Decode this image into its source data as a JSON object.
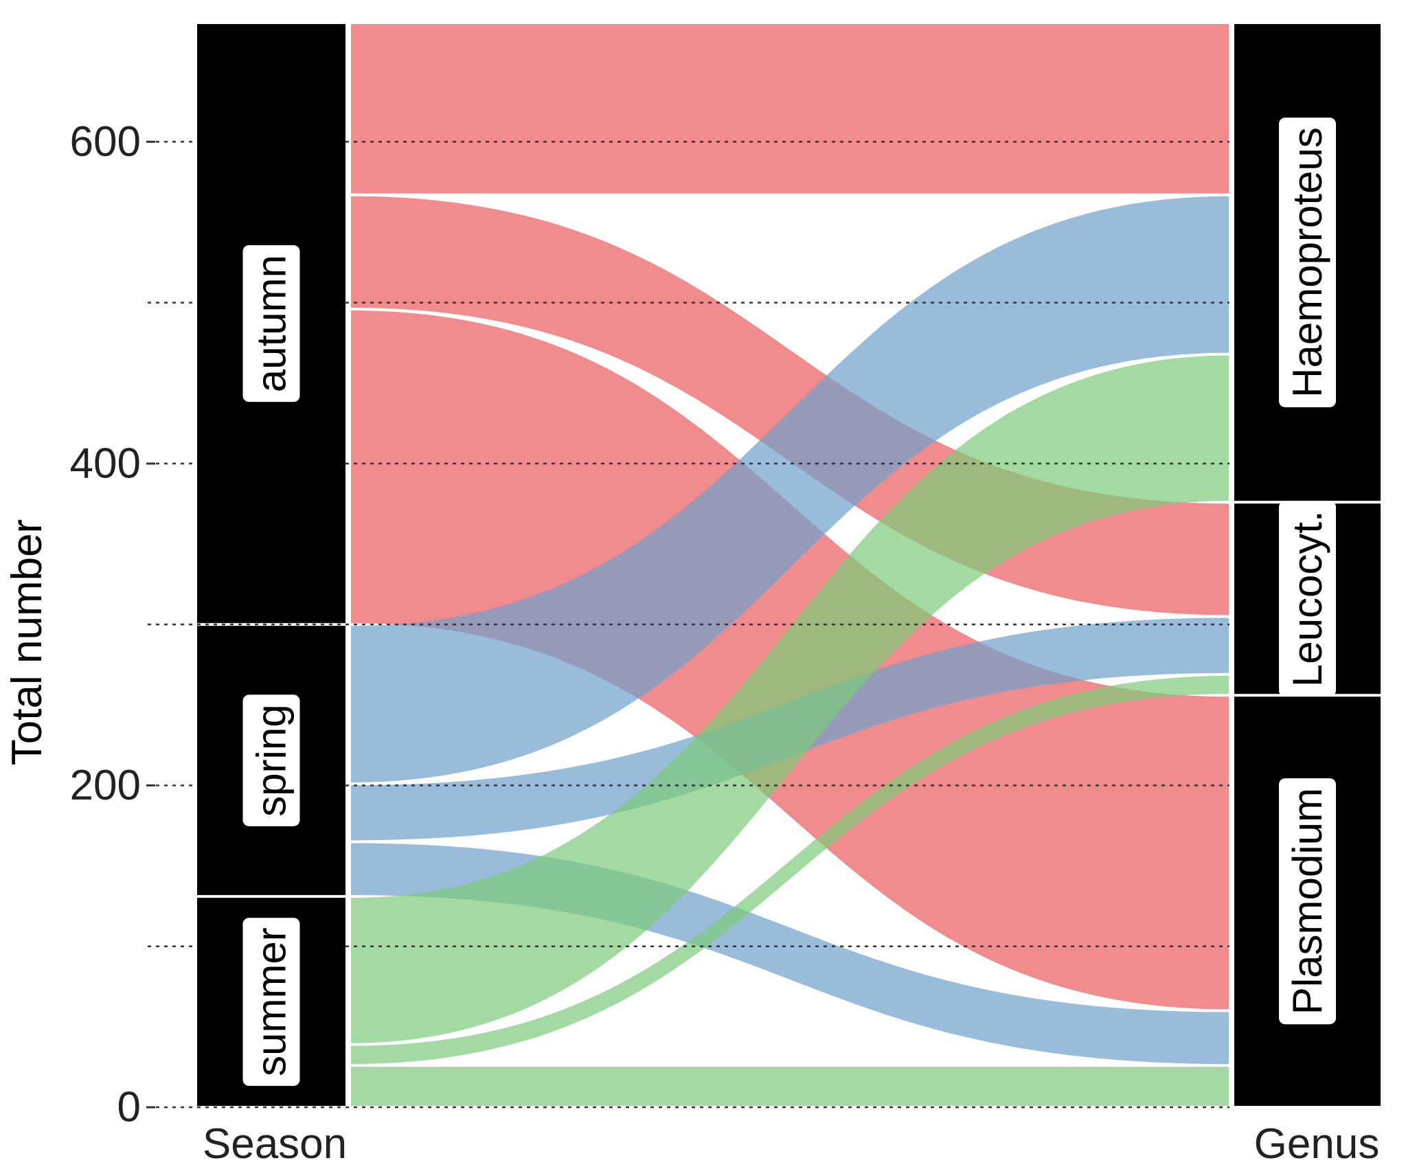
{
  "chart_data": {
    "type": "alluvial",
    "ylabel": "Total number",
    "ylim": [
      0,
      674
    ],
    "yticks": [
      0,
      200,
      400,
      600
    ],
    "gridlines": [
      0,
      100,
      200,
      300,
      400,
      500,
      600
    ],
    "axes": [
      {
        "name": "Season",
        "strata": [
          "autumn",
          "spring",
          "summer"
        ]
      },
      {
        "name": "Genus",
        "strata": [
          "Haemoproteus",
          "Leucocyt.",
          "Plasmodium"
        ]
      }
    ],
    "strata_values": {
      "Season": [
        {
          "label": "autumn",
          "value": 374
        },
        {
          "label": "spring",
          "value": 169
        },
        {
          "label": "summer",
          "value": 131
        }
      ],
      "Genus": [
        {
          "label": "Haemoproteus",
          "value": 298
        },
        {
          "label": "Leucocyt.",
          "value": 120
        },
        {
          "label": "Plasmodium",
          "value": 256
        }
      ]
    },
    "flows": [
      {
        "from": "autumn",
        "to": "Haemoproteus",
        "value": 107
      },
      {
        "from": "autumn",
        "to": "Leucocyt.",
        "value": 71
      },
      {
        "from": "autumn",
        "to": "Plasmodium",
        "value": 196
      },
      {
        "from": "spring",
        "to": "Haemoproteus",
        "value": 99
      },
      {
        "from": "spring",
        "to": "Leucocyt.",
        "value": 36
      },
      {
        "from": "spring",
        "to": "Plasmodium",
        "value": 34
      },
      {
        "from": "summer",
        "to": "Haemoproteus",
        "value": 92
      },
      {
        "from": "summer",
        "to": "Leucocyt.",
        "value": 13
      },
      {
        "from": "summer",
        "to": "Plasmodium",
        "value": 26
      }
    ],
    "colors": {
      "autumn": "#ea5b5e",
      "spring": "#6d9fcb",
      "summer": "#7ccb7a",
      "stratum_fill": "#000000",
      "label_box": "#ffffff",
      "gridline": "#333333"
    },
    "flow_opacity": 0.7,
    "legend": "none"
  }
}
